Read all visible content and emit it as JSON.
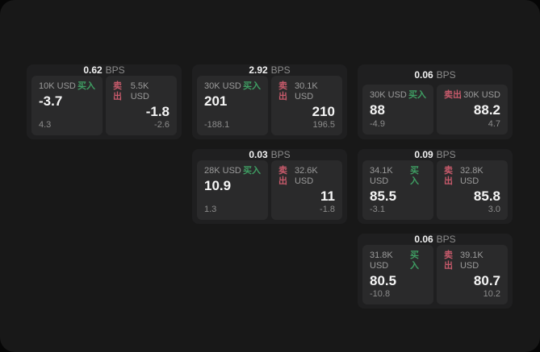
{
  "colors": {
    "buy_green": "#3f9e63",
    "sell_red": "#c75a6b",
    "panel_bg": "#2a2a2b",
    "card_bg": "#1f1f20",
    "board_bg": "#181818"
  },
  "cards": [
    {
      "bps": "0.62",
      "bps_unit": "BPS",
      "buy": {
        "amount": "10K USD",
        "side": "买入",
        "price": "-3.7",
        "delta": "4.3"
      },
      "sell": {
        "side": "卖出",
        "amount": "5.5K USD",
        "price": "-1.8",
        "delta": "-2.6"
      }
    },
    {
      "bps": "2.92",
      "bps_unit": "BPS",
      "buy": {
        "amount": "30K USD",
        "side": "买入",
        "price": "201",
        "delta": "-188.1"
      },
      "sell": {
        "side": "卖出",
        "amount": "30.1K USD",
        "price": "210",
        "delta": "196.5"
      }
    },
    {
      "bps": "0.06",
      "bps_unit": "BPS",
      "buy": {
        "amount": "30K USD",
        "side": "买入",
        "price": "88",
        "delta": "-4.9"
      },
      "sell": {
        "side": "卖出",
        "amount": "30K USD",
        "price": "88.2",
        "delta": "4.7"
      }
    },
    {
      "bps": "0.03",
      "bps_unit": "BPS",
      "buy": {
        "amount": "28K USD",
        "side": "买入",
        "price": "10.9",
        "delta": "1.3"
      },
      "sell": {
        "side": "卖出",
        "amount": "32.6K USD",
        "price": "11",
        "delta": "-1.8"
      }
    },
    {
      "bps": "0.09",
      "bps_unit": "BPS",
      "buy": {
        "amount": "34.1K USD",
        "side": "买入",
        "price": "85.5",
        "delta": "-3.1"
      },
      "sell": {
        "side": "卖出",
        "amount": "32.8K USD",
        "price": "85.8",
        "delta": "3.0"
      }
    },
    {
      "bps": "0.06",
      "bps_unit": "BPS",
      "buy": {
        "amount": "31.8K USD",
        "side": "买入",
        "price": "80.5",
        "delta": "-10.8"
      },
      "sell": {
        "side": "卖出",
        "amount": "39.1K USD",
        "price": "80.7",
        "delta": "10.2"
      }
    }
  ]
}
